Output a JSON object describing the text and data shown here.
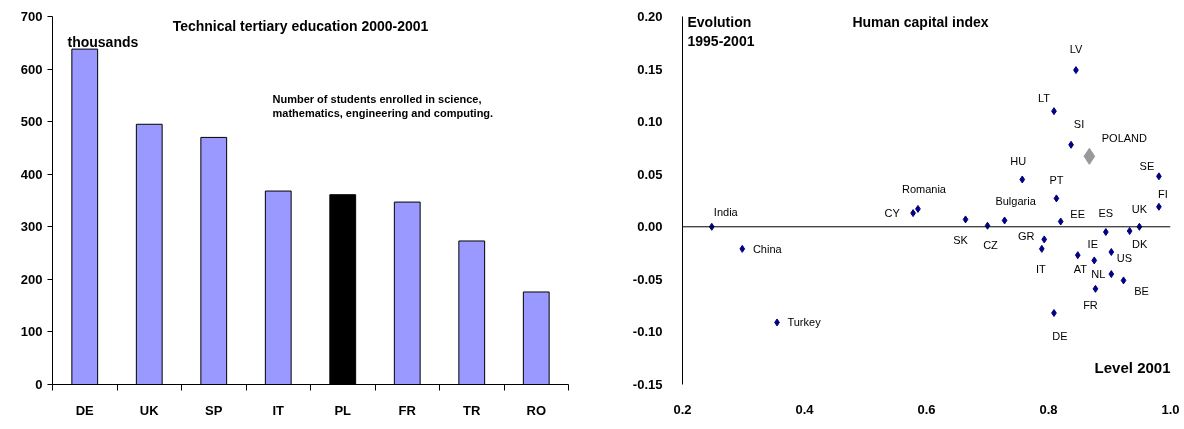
{
  "chart_data": [
    {
      "type": "bar",
      "title": "Technical tertiary education 2000-2001",
      "ylabel": "thousands",
      "categories": [
        "DE",
        "UK",
        "SP",
        "IT",
        "PL",
        "FR",
        "TR",
        "RO"
      ],
      "values": [
        638,
        495,
        470,
        368,
        361,
        347,
        273,
        176
      ],
      "colors": [
        "#9999ff",
        "#9999ff",
        "#9999ff",
        "#9999ff",
        "#000000",
        "#9999ff",
        "#9999ff",
        "#9999ff"
      ],
      "ylim": [
        0,
        700
      ],
      "yticks": [
        0,
        100,
        200,
        300,
        400,
        500,
        600,
        700
      ],
      "grid": false,
      "annotations": [
        "Number of students enrolled in science, mathematics, engineering and computing."
      ]
    },
    {
      "type": "scatter",
      "title": "Human capital index",
      "ylabel": "Evolution 1995-2001",
      "xlabel": "Level 2001",
      "marker": "diamond",
      "grid": false,
      "xlim": [
        0.2,
        1.0
      ],
      "xticks": [
        {
          "value": 0.2,
          "label": "0.2"
        },
        {
          "value": 0.4,
          "label": "0.4"
        },
        {
          "value": 0.6,
          "label": "0.6"
        },
        {
          "value": 0.8,
          "label": "0.8"
        },
        {
          "value": 1.0,
          "label": "1.0"
        }
      ],
      "ylim": [
        -0.15,
        0.2
      ],
      "yticks": [
        {
          "value": -0.15,
          "label": "-0.15"
        },
        {
          "value": -0.1,
          "label": "-0.10"
        },
        {
          "value": -0.05,
          "label": "-0.05"
        },
        {
          "value": 0,
          "label": "0.00"
        },
        {
          "value": 0.05,
          "label": "0.05"
        },
        {
          "value": 0.1,
          "label": "0.10"
        },
        {
          "value": 0.15,
          "label": "0.15"
        },
        {
          "value": 0.2,
          "label": "0.20"
        }
      ],
      "ref_lines": [
        {
          "axis": "y",
          "value": 0,
          "color": "#000000"
        }
      ],
      "series": [
        {
          "name": "India",
          "color": "#000080",
          "x": [
            0.248
          ],
          "values": [
            0.0
          ]
        },
        {
          "name": "China",
          "color": "#000080",
          "x": [
            0.298
          ],
          "values": [
            -0.021
          ]
        },
        {
          "name": "Turkey",
          "color": "#000080",
          "x": [
            0.355
          ],
          "values": [
            -0.091
          ]
        },
        {
          "name": "CY",
          "color": "#000080",
          "x": [
            0.578
          ],
          "values": [
            0.013
          ]
        },
        {
          "name": "Romania",
          "color": "#000080",
          "x": [
            0.586
          ],
          "values": [
            0.017
          ]
        },
        {
          "name": "SK",
          "color": "#000080",
          "x": [
            0.664
          ],
          "values": [
            0.007
          ]
        },
        {
          "name": "CZ",
          "color": "#000080",
          "x": [
            0.7
          ],
          "values": [
            0.001
          ]
        },
        {
          "name": "Bulgaria",
          "color": "#000080",
          "x": [
            0.728
          ],
          "values": [
            0.006
          ]
        },
        {
          "name": "HU",
          "color": "#000080",
          "x": [
            0.757
          ],
          "values": [
            0.045
          ]
        },
        {
          "name": "PT",
          "color": "#000080",
          "x": [
            0.813
          ],
          "values": [
            0.027
          ]
        },
        {
          "name": "EE",
          "color": "#000080",
          "x": [
            0.82
          ],
          "values": [
            0.005
          ]
        },
        {
          "name": "GR",
          "color": "#000080",
          "x": [
            0.793
          ],
          "values": [
            -0.012
          ]
        },
        {
          "name": "IT",
          "color": "#000080",
          "x": [
            0.789
          ],
          "values": [
            -0.021
          ]
        },
        {
          "name": "LV",
          "color": "#000080",
          "x": [
            0.845
          ],
          "values": [
            0.149
          ]
        },
        {
          "name": "LT",
          "color": "#000080",
          "x": [
            0.809
          ],
          "values": [
            0.11
          ]
        },
        {
          "name": "SI",
          "color": "#000080",
          "x": [
            0.837
          ],
          "values": [
            0.078
          ]
        },
        {
          "name": "POLAND",
          "color": "#999999",
          "x": [
            0.867
          ],
          "values": [
            0.067
          ]
        },
        {
          "name": "SE",
          "color": "#000080",
          "x": [
            0.981
          ],
          "values": [
            0.048
          ]
        },
        {
          "name": "FI",
          "color": "#000080",
          "x": [
            0.981
          ],
          "values": [
            0.019
          ]
        },
        {
          "name": "UK",
          "color": "#000080",
          "x": [
            0.949
          ],
          "values": [
            0.0
          ]
        },
        {
          "name": "DK",
          "color": "#000080",
          "x": [
            0.933
          ],
          "values": [
            -0.004
          ]
        },
        {
          "name": "ES",
          "color": "#000080",
          "x": [
            0.894
          ],
          "values": [
            -0.005
          ]
        },
        {
          "name": "IE",
          "color": "#000080",
          "x": [
            0.848
          ],
          "values": [
            -0.027
          ]
        },
        {
          "name": "AT",
          "color": "#000080",
          "x": [
            0.875
          ],
          "values": [
            -0.032
          ]
        },
        {
          "name": "US",
          "color": "#000080",
          "x": [
            0.903
          ],
          "values": [
            -0.024
          ]
        },
        {
          "name": "NL",
          "color": "#000080",
          "x": [
            0.903
          ],
          "values": [
            -0.045
          ]
        },
        {
          "name": "BE",
          "color": "#000080",
          "x": [
            0.923
          ],
          "values": [
            -0.051
          ]
        },
        {
          "name": "FR",
          "color": "#000080",
          "x": [
            0.877
          ],
          "values": [
            -0.059
          ]
        },
        {
          "name": "DE",
          "color": "#000080",
          "x": [
            0.809
          ],
          "values": [
            -0.082
          ]
        }
      ]
    }
  ]
}
